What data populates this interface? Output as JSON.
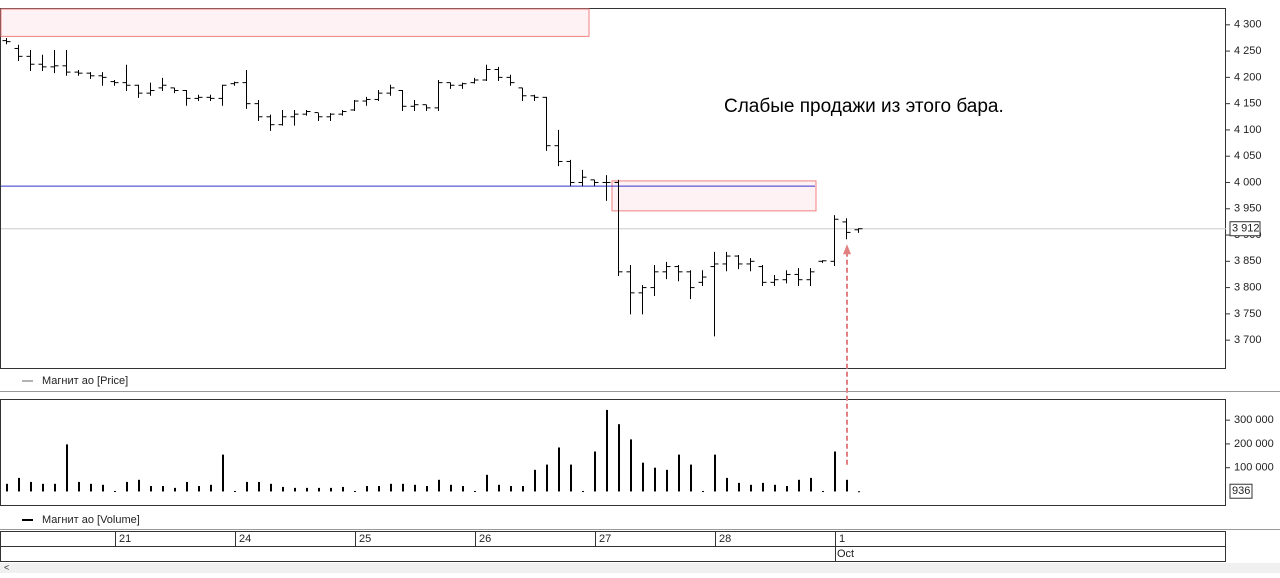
{
  "chart_data": {
    "type": "ohlc",
    "annotation": "Слабые продажи из этого бара.",
    "price_legend": "Магнит ао [Price]",
    "volume_legend": "Магнит ао [Volume]",
    "month": "Oct",
    "month_index": 69,
    "categories": [
      null,
      null,
      null,
      null,
      null,
      null,
      null,
      null,
      null,
      "21",
      null,
      null,
      null,
      null,
      null,
      null,
      null,
      null,
      null,
      "24",
      null,
      null,
      null,
      null,
      null,
      null,
      null,
      null,
      null,
      "25",
      null,
      null,
      null,
      null,
      null,
      null,
      null,
      null,
      null,
      "26",
      null,
      null,
      null,
      null,
      null,
      null,
      null,
      null,
      null,
      "27",
      null,
      null,
      null,
      null,
      null,
      null,
      null,
      null,
      null,
      "28",
      null,
      null,
      null,
      null,
      null,
      null,
      null,
      null,
      null,
      "1",
      null,
      null
    ],
    "open": [
      4270,
      4255,
      4240,
      4225,
      4220,
      4222,
      4210,
      4208,
      4203,
      4192,
      4190,
      4185,
      4170,
      4180,
      4180,
      4175,
      4160,
      4162,
      4160,
      4188,
      4190,
      4150,
      4125,
      4110,
      4125,
      4130,
      4133,
      4125,
      4130,
      4138,
      4155,
      4158,
      4170,
      4175,
      4145,
      4148,
      4142,
      4190,
      4185,
      4190,
      4195,
      4215,
      4200,
      4180,
      4165,
      4162,
      4070,
      4040,
      4000,
      4005,
      4000,
      4000,
      3830,
      3790,
      3800,
      3830,
      3840,
      3830,
      3810,
      3840,
      3845,
      3860,
      3845,
      3840,
      3810,
      3815,
      3825,
      3815,
      3850,
      3850,
      3925,
      3910
    ],
    "high": [
      4275,
      4262,
      4252,
      4243,
      4252,
      4252,
      4214,
      4210,
      4210,
      4195,
      4224,
      4186,
      4190,
      4199,
      4180,
      4176,
      4167,
      4167,
      4186,
      4192,
      4214,
      4157,
      4129,
      4138,
      4138,
      4138,
      4132,
      4132,
      4138,
      4157,
      4163,
      4176,
      4186,
      4176,
      4157,
      4148,
      4195,
      4190,
      4190,
      4199,
      4224,
      4220,
      4205,
      4180,
      4167,
      4163,
      4100,
      4043,
      4024,
      4005,
      4014,
      4005,
      3843,
      3805,
      3843,
      3849,
      3843,
      3833,
      3833,
      3868,
      3868,
      3862,
      3856,
      3843,
      3824,
      3833,
      3837,
      3837,
      3852,
      3938,
      3932,
      3913
    ],
    "low": [
      4265,
      4233,
      4214,
      4214,
      4210,
      4205,
      4205,
      4199,
      4186,
      4186,
      4176,
      4163,
      4167,
      4176,
      4172,
      4148,
      4157,
      4157,
      4148,
      4186,
      4142,
      4119,
      4100,
      4110,
      4110,
      4129,
      4119,
      4119,
      4129,
      4138,
      4148,
      4157,
      4167,
      4138,
      4138,
      4138,
      4138,
      4180,
      4180,
      4190,
      4195,
      4195,
      4186,
      4157,
      4157,
      4062,
      4033,
      3995,
      3995,
      3995,
      3967,
      3824,
      3751,
      3751,
      3786,
      3818,
      3814,
      3780,
      3805,
      3709,
      3833,
      3837,
      3833,
      3805,
      3805,
      3810,
      3805,
      3805,
      3849,
      3843,
      3894,
      3906
    ],
    "close": [
      4268,
      4240,
      4225,
      4220,
      4222,
      4210,
      4208,
      4203,
      4200,
      4190,
      4185,
      4170,
      4175,
      4185,
      4175,
      4160,
      4162,
      4160,
      4185,
      4190,
      4150,
      4125,
      4110,
      4125,
      4130,
      4135,
      4125,
      4130,
      4135,
      4155,
      4158,
      4170,
      4180,
      4145,
      4148,
      4142,
      4190,
      4185,
      4188,
      4195,
      4215,
      4200,
      4190,
      4165,
      4162,
      4070,
      4040,
      4000,
      4010,
      4000,
      4000,
      3830,
      3790,
      3800,
      3830,
      3840,
      3830,
      3800,
      3820,
      3845,
      3860,
      3845,
      3850,
      3810,
      3815,
      3825,
      3815,
      3830,
      3851,
      3930,
      3905,
      3912
    ],
    "volume": [
      32000,
      57000,
      40000,
      32000,
      32000,
      198000,
      40000,
      32000,
      28000,
      2000,
      40000,
      49000,
      23000,
      23000,
      15000,
      40000,
      23000,
      28000,
      155000,
      2000,
      40000,
      40000,
      32000,
      19000,
      15000,
      15000,
      15000,
      15000,
      19000,
      2000,
      23000,
      23000,
      32000,
      32000,
      28000,
      23000,
      49000,
      28000,
      23000,
      2000,
      70000,
      28000,
      23000,
      23000,
      91000,
      113000,
      185000,
      113000,
      2000,
      168000,
      343000,
      283000,
      219000,
      121000,
      100000,
      91000,
      155000,
      113000,
      2000,
      155000,
      57000,
      36000,
      28000,
      36000,
      28000,
      23000,
      49000,
      57000,
      2000,
      168000,
      49000,
      936
    ],
    "color": "#000000",
    "ylim": [
      3647,
      4332
    ],
    "yticks": [
      {
        "value": 3700,
        "label": "3 700"
      },
      {
        "value": 3750,
        "label": "3 750"
      },
      {
        "value": 3800,
        "label": "3 800"
      },
      {
        "value": 3850,
        "label": "3 850"
      },
      {
        "value": 3900,
        "label": "3 900"
      },
      {
        "value": 3950,
        "label": "3 950"
      },
      {
        "value": 4000,
        "label": "4 000"
      },
      {
        "value": 4050,
        "label": "4 050"
      },
      {
        "value": 4100,
        "label": "4 100"
      },
      {
        "value": 4150,
        "label": "4 150"
      },
      {
        "value": 4200,
        "label": "4 200"
      },
      {
        "value": 4250,
        "label": "4 250"
      },
      {
        "value": 4300,
        "label": "4 300"
      }
    ],
    "volume_ylim": [
      -57000,
      389000
    ],
    "volume_yticks": [
      {
        "value": 100000,
        "label": "100 000"
      },
      {
        "value": 200000,
        "label": "200 000"
      },
      {
        "value": 300000,
        "label": "300 000"
      }
    ],
    "last_price": {
      "value": 3912,
      "label": "3 912"
    },
    "level": 3993,
    "zones": [
      {
        "low": 4278,
        "high": 4332,
        "start": 0,
        "end": 48
      },
      {
        "low": 3946,
        "high": 4003,
        "start": 51,
        "end": 67
      }
    ]
  }
}
